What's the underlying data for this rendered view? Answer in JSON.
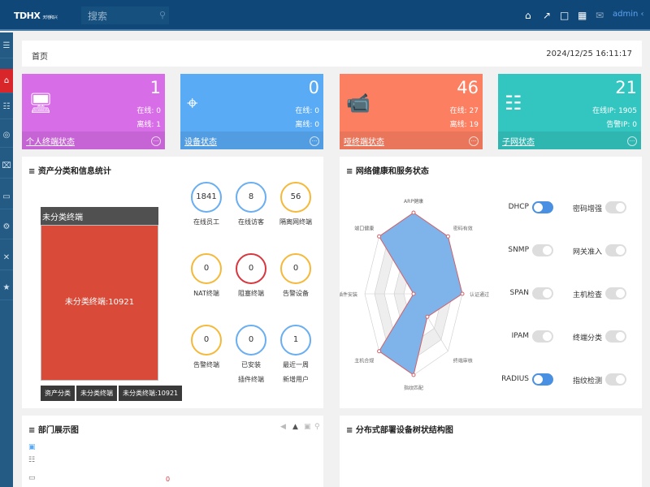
{
  "header": {
    "logo": "TDHX",
    "logo_sub": "天地和兴",
    "search_placeholder": "搜索",
    "user": "admin",
    "icons": [
      "home-settings-icon",
      "external-link-icon",
      "shirt-icon",
      "calendar-icon",
      "mail-icon"
    ]
  },
  "sidebar": {
    "items": [
      "menu-icon",
      "home-icon",
      "sitemap-icon",
      "lightbulb-icon",
      "target-icon",
      "device-icon",
      "gear-icon",
      "tools-icon",
      "star-icon"
    ],
    "active": "home-icon"
  },
  "breadcrumb": {
    "current": "首页",
    "datetime": "2024/12/25 16:11:17"
  },
  "cards": [
    {
      "title": "个人终端状态",
      "count": "1",
      "line1": "在线: 0",
      "line2": "离线: 1",
      "color": "#d86de8",
      "icon": "computer-phone-icon"
    },
    {
      "title": "设备状态",
      "count": "0",
      "line1": "在线: 0",
      "line2": "离线: 0",
      "color": "#5aabf6",
      "icon": "router-icon"
    },
    {
      "title": "哑终端状态",
      "count": "46",
      "line1": "在线: 27",
      "line2": "离线: 19",
      "color": "#fd7f62",
      "icon": "camera-icon"
    },
    {
      "title": "子网状态",
      "count": "21",
      "line1": "在线IP: 1905",
      "line2": "告警IP: 0",
      "color": "#33c6c1",
      "icon": "network-icon"
    }
  ],
  "asset_panel": {
    "title": "资产分类和信息统计",
    "treemap": {
      "header": "未分类终端",
      "block_label": "未分类终端:10921",
      "breadcrumb": [
        "资产分类",
        "未分类终端",
        "未分类终端:10921"
      ]
    },
    "stats": [
      {
        "value": "1841",
        "label": "在线员工",
        "color": "#6aaef2"
      },
      {
        "value": "8",
        "label": "在线访客",
        "color": "#6aaef2"
      },
      {
        "value": "56",
        "label": "隔离网终端",
        "color": "#f5b93a"
      },
      {
        "value": "0",
        "label": "NAT终端",
        "color": "#f5b93a"
      },
      {
        "value": "0",
        "label": "阻塞终端",
        "color": "#d9363e"
      },
      {
        "value": "0",
        "label": "告警设备",
        "color": "#f5b93a"
      },
      {
        "value": "0",
        "label": "告警终端",
        "color": "#f5b93a"
      },
      {
        "value": "0",
        "label": "已安装",
        "label2": "插件终端",
        "color": "#6aaef2"
      },
      {
        "value": "1",
        "label": "最近一周",
        "label2": "新增用户",
        "color": "#6aaef2"
      }
    ]
  },
  "health_panel": {
    "title": "网络健康和服务状态",
    "radar": {
      "axes": [
        "ARP健康",
        "密码有效",
        "认证通过",
        "终端审核",
        "指纹匹配",
        "主机合规",
        "插件安装",
        "端口健康"
      ],
      "values": [
        1,
        1,
        1,
        0.4,
        1,
        1,
        0,
        1
      ],
      "max": 1
    },
    "toggles": [
      {
        "label": "DHCP",
        "on": true
      },
      {
        "label": "密码增强",
        "on": false
      },
      {
        "label": "SNMP",
        "on": false
      },
      {
        "label": "网关准入",
        "on": false
      },
      {
        "label": "SPAN",
        "on": false
      },
      {
        "label": "主机检查",
        "on": false
      },
      {
        "label": "IPAM",
        "on": false
      },
      {
        "label": "终端分类",
        "on": false
      },
      {
        "label": "RADIUS",
        "on": true
      },
      {
        "label": "指纹检测",
        "on": false
      }
    ]
  },
  "dept_panel": {
    "title": "部门展示图",
    "count": "0"
  },
  "tree_panel": {
    "title": "分布式部署设备树状结构图"
  }
}
